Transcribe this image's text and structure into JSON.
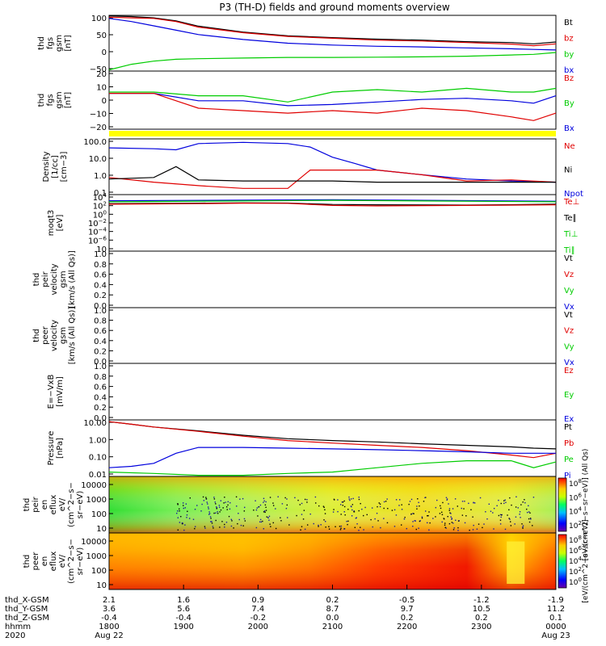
{
  "title": "P3 (TH-D) fields and ground moments overview",
  "legend_colors": {
    "black": "#000000",
    "red": "#e00000",
    "green": "#00cc00",
    "blue": "#0000dd"
  },
  "chart_data": {
    "type": "line",
    "time_axis": {
      "ticks": [
        "1800",
        "1900",
        "2000",
        "2100",
        "2200",
        "2300",
        "0000"
      ],
      "dates": [
        "Aug 22",
        "",
        "",
        "",
        "",
        "",
        "Aug 23"
      ],
      "year": "2020",
      "row_labels": [
        "thd_X-GSM",
        "thd_Y-GSM",
        "thd_Z-GSM",
        "hhmm",
        "2020"
      ],
      "x_gsm": [
        "2.1",
        "1.6",
        "0.9",
        "0.2",
        "-0.5",
        "-1.2",
        "-1.9"
      ],
      "y_gsm": [
        "3.6",
        "5.6",
        "7.4",
        "8.7",
        "9.7",
        "10.5",
        "11.2"
      ],
      "z_gsm": [
        "-0.4",
        "-0.4",
        "-0.2",
        "0.0",
        "0.2",
        "0.2",
        "0.1"
      ]
    },
    "panels": [
      {
        "name": "fgs_gsm_mag",
        "ylabel": [
          "thd",
          "fgs",
          "gsm",
          "[nT]"
        ],
        "yticks": [
          "100",
          "50",
          "0",
          "−50"
        ],
        "ylim": [
          -70,
          110
        ],
        "legend": [
          {
            "label": "Bt",
            "color": "#000000"
          },
          {
            "label": "bz",
            "color": "#e00000"
          },
          {
            "label": "by",
            "color": "#00cc00"
          },
          {
            "label": "bx",
            "color": "#0000dd"
          }
        ],
        "series": [
          {
            "color": "#000000",
            "x": [
              0,
              0.05,
              0.1,
              0.15,
              0.2,
              0.3,
              0.4,
              0.5,
              0.6,
              0.7,
              0.8,
              0.9,
              0.95,
              1
            ],
            "y": [
              108,
              106,
              102,
              92,
              75,
              56,
              44,
              38,
              33,
              30,
              25,
              22,
              18,
              24
            ]
          },
          {
            "color": "#e00000",
            "x": [
              0,
              0.05,
              0.1,
              0.15,
              0.2,
              0.3,
              0.4,
              0.5,
              0.6,
              0.7,
              0.8,
              0.9,
              0.95,
              1
            ],
            "y": [
              104,
              102,
              100,
              90,
              72,
              54,
              42,
              36,
              30,
              27,
              22,
              17,
              12,
              18
            ]
          },
          {
            "color": "#0000dd",
            "x": [
              0,
              0.05,
              0.1,
              0.15,
              0.2,
              0.3,
              0.4,
              0.5,
              0.6,
              0.7,
              0.8,
              0.9,
              0.95,
              1
            ],
            "y": [
              100,
              90,
              76,
              62,
              48,
              32,
              20,
              14,
              10,
              8,
              5,
              2,
              0,
              -2
            ]
          },
          {
            "color": "#00cc00",
            "x": [
              0,
              0.05,
              0.1,
              0.15,
              0.2,
              0.3,
              0.4,
              0.5,
              0.6,
              0.7,
              0.8,
              0.9,
              0.95,
              1
            ],
            "y": [
              -66,
              -48,
              -38,
              -32,
              -30,
              -28,
              -26,
              -26,
              -25,
              -24,
              -22,
              -18,
              -16,
              -10
            ]
          }
        ]
      },
      {
        "name": "fgs_gsm_detrended",
        "ylabel": [
          "thd",
          "fgs",
          "gsm",
          "[nT]"
        ],
        "yticks": [
          "20",
          "10",
          "0",
          "−10",
          "−20"
        ],
        "ylim": [
          -25,
          22
        ],
        "legend": [
          {
            "label": "Bz",
            "color": "#e00000"
          },
          {
            "label": "By",
            "color": "#00cc00"
          },
          {
            "label": "Bx",
            "color": "#0000dd"
          }
        ],
        "series": [
          {
            "color": "#00cc00",
            "x": [
              0,
              0.1,
              0.2,
              0.3,
              0.4,
              0.5,
              0.6,
              0.7,
              0.8,
              0.9,
              0.95,
              1
            ],
            "y": [
              5,
              5,
              2,
              2,
              -3,
              5,
              7,
              5,
              8,
              5,
              5,
              8
            ]
          },
          {
            "color": "#0000dd",
            "x": [
              0,
              0.1,
              0.2,
              0.3,
              0.4,
              0.5,
              0.6,
              0.7,
              0.8,
              0.9,
              0.95,
              1
            ],
            "y": [
              4,
              4,
              -2,
              -2,
              -6,
              -5,
              -3,
              -1,
              0,
              -2,
              -4,
              2
            ]
          },
          {
            "color": "#e00000",
            "x": [
              0,
              0.1,
              0.2,
              0.3,
              0.4,
              0.5,
              0.6,
              0.7,
              0.8,
              0.9,
              0.95,
              1
            ],
            "y": [
              4,
              4,
              -8,
              -10,
              -12,
              -10,
              -12,
              -8,
              -10,
              -15,
              -18,
              -12
            ]
          }
        ]
      },
      {
        "name": "density",
        "ylabel": [
          "Density",
          "[1/cc]",
          "[cm−3]"
        ],
        "yticks": [
          "100.0",
          "10.0",
          "1.0",
          "0.1"
        ],
        "ylim": [
          0.08,
          300
        ],
        "log": true,
        "legend": [
          {
            "label": "Ne",
            "color": "#e00000"
          },
          {
            "label": "Ni",
            "color": "#000000"
          },
          {
            "label": "Npot",
            "color": "#0000dd"
          }
        ],
        "series": [
          {
            "color": "#0000dd",
            "x": [
              0,
              0.1,
              0.15,
              0.2,
              0.3,
              0.4,
              0.45,
              0.5,
              0.55,
              0.6,
              0.7,
              0.8,
              0.9,
              1
            ],
            "y": [
              80,
              70,
              60,
              150,
              180,
              150,
              90,
              20,
              8,
              3,
              1.5,
              0.8,
              0.6,
              0.5
            ]
          },
          {
            "color": "#e00000",
            "x": [
              0,
              0.1,
              0.2,
              0.3,
              0.4,
              0.45,
              0.5,
              0.6,
              0.7,
              0.8,
              0.9,
              1
            ],
            "y": [
              1.0,
              0.5,
              0.3,
              0.2,
              0.2,
              3,
              3,
              3,
              1.5,
              0.6,
              0.7,
              0.5
            ]
          },
          {
            "color": "#000000",
            "x": [
              0,
              0.1,
              0.15,
              0.2,
              0.3,
              0.4,
              0.5,
              0.6,
              0.7,
              0.8,
              0.9,
              1
            ],
            "y": [
              0.8,
              1.0,
              5,
              0.7,
              0.6,
              0.6,
              0.6,
              0.5,
              0.5,
              0.5,
              0.5,
              0.5
            ]
          }
        ]
      },
      {
        "name": "temperature",
        "ylabel": [
          "moqt3",
          "[eV]"
        ],
        "yticks": [
          "10",
          "10",
          "10",
          "10",
          "10",
          "10",
          "10"
        ],
        "yticksup": [
          "4",
          "2",
          "0",
          "−2",
          "−4",
          "−6",
          ""
        ],
        "ylim": [
          1e-07,
          100000.0
        ],
        "log": true,
        "legend": [
          {
            "label": "Te⊥",
            "color": "#e00000"
          },
          {
            "label": "Te∥",
            "color": "#000000"
          },
          {
            "label": "Ti⊥",
            "color": "#00cc00"
          },
          {
            "label": "Ti∥",
            "color": "#00cc00"
          }
        ],
        "series": [
          {
            "color": "#0000dd",
            "x": [
              0,
              0.5,
              1
            ],
            "y": [
              5000,
              8000,
              4000
            ]
          },
          {
            "color": "#00cc00",
            "x": [
              0,
              0.5,
              1
            ],
            "y": [
              3000,
              6000,
              3000
            ]
          },
          {
            "color": "#000000",
            "x": [
              0,
              0.2,
              0.3,
              0.4,
              0.5,
              0.6,
              0.8,
              1
            ],
            "y": [
              1200,
              1500,
              1800,
              1600,
              800,
              700,
              600,
              900
            ]
          },
          {
            "color": "#e00000",
            "x": [
              0,
              0.2,
              0.3,
              0.4,
              0.5,
              0.6,
              0.8,
              1
            ],
            "y": [
              900,
              1200,
              1500,
              1400,
              500,
              400,
              500,
              700
            ]
          }
        ]
      },
      {
        "name": "peir_velocity",
        "ylabel": [
          "thd",
          "peir",
          "velocity",
          "gsm",
          "[km/s (All Qs)]"
        ],
        "yticks": [
          "1.0",
          "0.8",
          "0.6",
          "0.4",
          "0.2",
          "0.0"
        ],
        "ylim": [
          0,
          1
        ],
        "legend": [
          {
            "label": "Vt",
            "color": "#000000"
          },
          {
            "label": "Vz",
            "color": "#e00000"
          },
          {
            "label": "Vy",
            "color": "#00cc00"
          },
          {
            "label": "Vx",
            "color": "#0000dd"
          }
        ],
        "series": []
      },
      {
        "name": "peer_velocity",
        "ylabel": [
          "thd",
          "peer",
          "velocity",
          "gsm",
          "[km/s (All Qs)]"
        ],
        "yticks": [
          "1.0",
          "0.8",
          "0.6",
          "0.4",
          "0.2",
          "0.0"
        ],
        "ylim": [
          0,
          1
        ],
        "legend": [
          {
            "label": "Vt",
            "color": "#000000"
          },
          {
            "label": "Vz",
            "color": "#e00000"
          },
          {
            "label": "Vy",
            "color": "#00cc00"
          },
          {
            "label": "Vx",
            "color": "#0000dd"
          }
        ],
        "series": []
      },
      {
        "name": "efield",
        "ylabel": [
          "E=−VxB",
          "[mV/m]"
        ],
        "yticks": [
          "1.0",
          "0.8",
          "0.6",
          "0.4",
          "0.2",
          "0.0"
        ],
        "ylim": [
          0,
          1
        ],
        "legend": [
          {
            "label": "Ez",
            "color": "#e00000"
          },
          {
            "label": "Ey",
            "color": "#00cc00"
          },
          {
            "label": "Ex",
            "color": "#0000dd"
          }
        ],
        "series": []
      },
      {
        "name": "pressure",
        "ylabel": [
          "Pressure",
          "[nPa]"
        ],
        "yticks": [
          "10.00",
          "1.00",
          "0.10",
          "0.01"
        ],
        "ylim": [
          0.005,
          40
        ],
        "log": true,
        "legend": [
          {
            "label": "Pt",
            "color": "#000000"
          },
          {
            "label": "Pb",
            "color": "#e00000"
          },
          {
            "label": "Pe",
            "color": "#00cc00"
          },
          {
            "label": "Pi",
            "color": "#0000dd"
          }
        ],
        "series": [
          {
            "color": "#000000",
            "x": [
              0,
              0.05,
              0.1,
              0.2,
              0.3,
              0.4,
              0.5,
              0.6,
              0.7,
              0.8,
              0.9,
              0.95,
              1
            ],
            "y": [
              30,
              20,
              13,
              7,
              3.5,
              2,
              1.5,
              1.2,
              0.9,
              0.7,
              0.55,
              0.45,
              0.4
            ]
          },
          {
            "color": "#e00000",
            "x": [
              0,
              0.05,
              0.1,
              0.2,
              0.3,
              0.4,
              0.5,
              0.6,
              0.7,
              0.8,
              0.9,
              0.95,
              1
            ],
            "y": [
              30,
              20,
              13,
              6.5,
              3,
              1.5,
              1.0,
              0.7,
              0.5,
              0.3,
              0.15,
              0.1,
              0.2
            ]
          },
          {
            "color": "#0000dd",
            "x": [
              0,
              0.05,
              0.1,
              0.15,
              0.2,
              0.25,
              0.3,
              0.4,
              0.5,
              0.6,
              0.7,
              0.8,
              0.9,
              1
            ],
            "y": [
              0.02,
              0.025,
              0.04,
              0.2,
              0.5,
              0.5,
              0.5,
              0.45,
              0.4,
              0.35,
              0.3,
              0.25,
              0.2,
              0.2
            ]
          },
          {
            "color": "#00cc00",
            "x": [
              0,
              0.1,
              0.2,
              0.3,
              0.4,
              0.5,
              0.6,
              0.7,
              0.8,
              0.9,
              0.95,
              1
            ],
            "y": [
              0.01,
              0.008,
              0.006,
              0.006,
              0.008,
              0.01,
              0.02,
              0.04,
              0.06,
              0.06,
              0.02,
              0.05
            ]
          }
        ]
      },
      {
        "name": "peir_en_eflux",
        "type": "heatmap",
        "ylabel": [
          "thd",
          "peir",
          "en",
          "eflux",
          "eV/",
          "(cm^2−s−",
          "sr−eV)"
        ],
        "yticks": [
          "10000",
          "1000",
          "100",
          "10"
        ],
        "colorbar_ticks": [
          "10",
          "10",
          "10",
          "10"
        ],
        "colorbar_sup": [
          "8",
          "6",
          "4",
          "2"
        ],
        "colorbar_label": "[eV/(cm^2−s−sr−eV)] (All Qs)"
      },
      {
        "name": "peer_en_eflux",
        "type": "heatmap",
        "ylabel": [
          "thd",
          "peer",
          "en",
          "eflux",
          "eV/",
          "(cm^2−s−",
          "sr−eV)"
        ],
        "yticks": [
          "10000",
          "1000",
          "100",
          "10"
        ],
        "colorbar_ticks": [
          "10",
          "10",
          "10",
          "10",
          "10"
        ],
        "colorbar_sup": [
          "8",
          "6",
          "4",
          "2",
          "0"
        ],
        "colorbar_label": "[eV/(cm^2−s−sr−eV)]"
      }
    ]
  }
}
